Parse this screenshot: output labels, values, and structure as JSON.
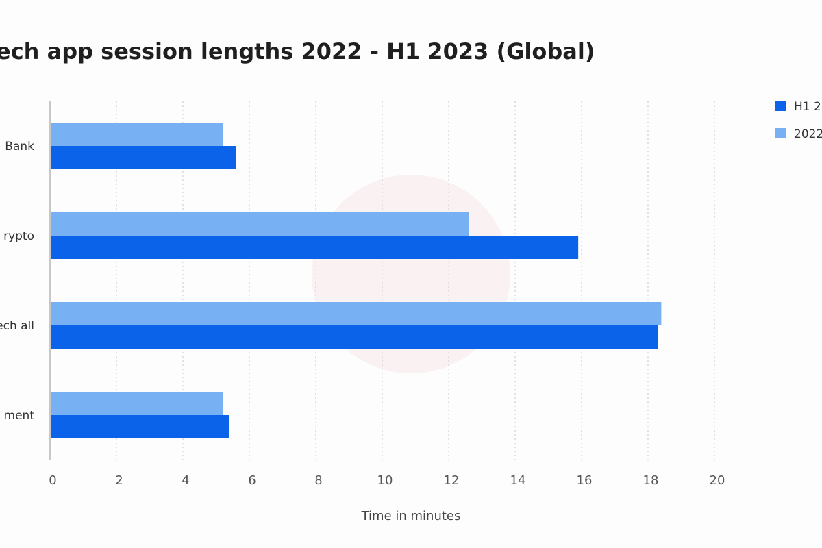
{
  "chart_data": {
    "type": "bar",
    "orientation": "horizontal",
    "title": "ech app session lengths 2022 - H1 2023 (Global)",
    "xlabel": "Time in minutes",
    "ylabel": "",
    "xlim": [
      0,
      20
    ],
    "xticks": [
      "0",
      "2",
      "4",
      "6",
      "8",
      "10",
      "12",
      "14",
      "16",
      "18",
      "20"
    ],
    "categories": [
      "Bank",
      "rypto",
      "ech all",
      "ment"
    ],
    "series": [
      {
        "name": "2022",
        "color": "#78b0f4",
        "values": [
          5.2,
          12.6,
          18.4,
          5.2
        ]
      },
      {
        "name": "H1 2",
        "color": "#0a63e8",
        "values": [
          5.6,
          15.9,
          18.3,
          5.4
        ]
      }
    ],
    "legend_labels": [
      "H1 2",
      "2022"
    ],
    "grid": "vertical-dotted",
    "legend_position": "top-right"
  }
}
